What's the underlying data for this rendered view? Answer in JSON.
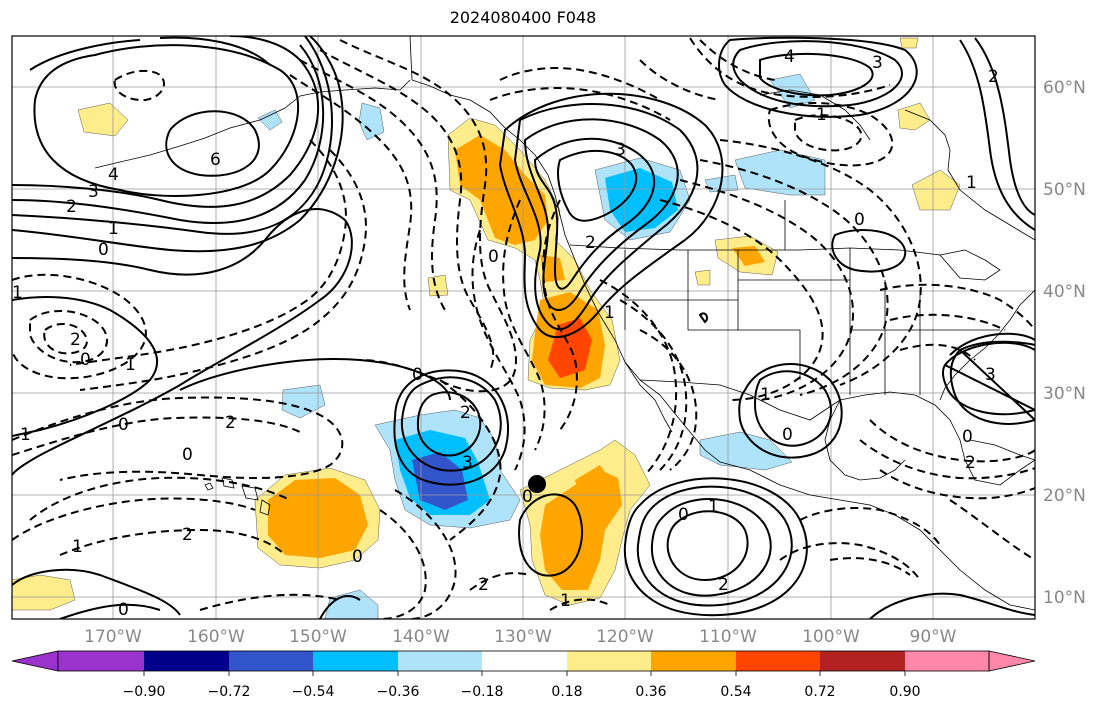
{
  "title": "2024080400 F048",
  "axes": {
    "lon_labels": [
      "170°W",
      "160°W",
      "150°W",
      "140°W",
      "130°W",
      "120°W",
      "110°W",
      "100°W",
      "90°W"
    ],
    "lat_labels": [
      "60°N",
      "50°N",
      "40°N",
      "30°N",
      "20°N",
      "10°N"
    ]
  },
  "colorbar": {
    "ticks": [
      "−0.90",
      "−0.72",
      "−0.54",
      "−0.36",
      "−0.18",
      "0.18",
      "0.36",
      "0.54",
      "0.72",
      "0.90"
    ],
    "colors": [
      "#9933cc",
      "#00008b",
      "#3355cc",
      "#00bfff",
      "#aee3fa",
      "#ffffff",
      "#ffec8b",
      "#ffa500",
      "#ff4500",
      "#b22222",
      "#ff88aa"
    ]
  },
  "contour_labels": [
    {
      "text": "6"
    },
    {
      "text": "4"
    },
    {
      "text": "3"
    },
    {
      "text": "2"
    },
    {
      "text": "1"
    },
    {
      "text": "0"
    },
    {
      "text": "1"
    },
    {
      "text": "2"
    },
    {
      "text": "0"
    },
    {
      "text": "1"
    },
    {
      "text": "0"
    },
    {
      "text": "2"
    },
    {
      "text": "1"
    },
    {
      "text": "0"
    },
    {
      "text": "2"
    },
    {
      "text": "1"
    },
    {
      "text": "0"
    },
    {
      "text": "0"
    },
    {
      "text": "2"
    },
    {
      "text": "0"
    },
    {
      "text": "3"
    },
    {
      "text": "2"
    },
    {
      "text": "1"
    },
    {
      "text": "0"
    },
    {
      "text": "3"
    },
    {
      "text": "2"
    },
    {
      "text": "1"
    },
    {
      "text": "0"
    },
    {
      "text": "1"
    },
    {
      "text": "0"
    },
    {
      "text": "1"
    },
    {
      "text": "0"
    },
    {
      "text": "2"
    },
    {
      "text": "4"
    },
    {
      "text": "3"
    },
    {
      "text": "2"
    },
    {
      "text": "1"
    },
    {
      "text": "0"
    },
    {
      "text": "1"
    },
    {
      "text": "3"
    },
    {
      "text": "2"
    },
    {
      "text": "0"
    }
  ]
}
